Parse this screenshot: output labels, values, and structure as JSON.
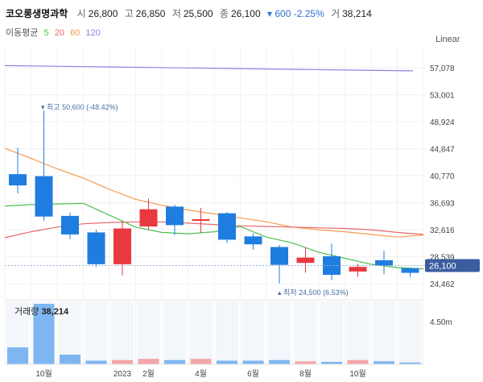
{
  "header": {
    "name": "코오롱생명과학",
    "open_label": "시",
    "open": "26,800",
    "high_label": "고",
    "high": "26,850",
    "low_label": "저",
    "low": "25,500",
    "close_label": "종",
    "close": "26,100",
    "change": "▾ 600 -2.25%",
    "volume_label": "거",
    "volume": "38,214"
  },
  "moving_average": {
    "label": "이동평균",
    "periods": [
      {
        "period": "5",
        "color": "#4cbf4c"
      },
      {
        "period": "20",
        "color": "#e8686b"
      },
      {
        "period": "60",
        "color": "#f39a4d"
      },
      {
        "period": "120",
        "color": "#9b7be8"
      }
    ]
  },
  "scale_mode": "Linear",
  "colors": {
    "up": "#e8393e",
    "down": "#1f7de0",
    "current_price_badge": "#3b5da0",
    "volume_bar": "#7fb6f2"
  },
  "chart_data": {
    "type": "candlestick",
    "interval": "monthly",
    "y_ticks": [
      57078,
      53001,
      48924,
      44847,
      40770,
      36693,
      32616,
      28539,
      24462
    ],
    "ylim": [
      23700,
      60200
    ],
    "x_ticks": [
      "10월",
      "2023",
      "2월",
      "4월",
      "6월",
      "8월",
      "10월"
    ],
    "current_price": "26,100",
    "annotations": {
      "high": "▾ 최고 50,600 (-48.42%)",
      "low": "▴ 최저 24,500 (6.53%)"
    },
    "candles": [
      {
        "open": 41000,
        "high": 45000,
        "low": 38100,
        "close": 39300
      },
      {
        "open": 40700,
        "high": 50600,
        "low": 34000,
        "close": 34600
      },
      {
        "open": 34700,
        "high": 35200,
        "low": 31200,
        "close": 31900
      },
      {
        "open": 32200,
        "high": 32600,
        "low": 27000,
        "close": 27400
      },
      {
        "open": 27400,
        "high": 33900,
        "low": 25700,
        "close": 32800
      },
      {
        "open": 33100,
        "high": 37300,
        "low": 32600,
        "close": 35700
      },
      {
        "open": 36100,
        "high": 36400,
        "low": 31800,
        "close": 33300
      },
      {
        "open": 34000,
        "high": 35900,
        "low": 32100,
        "close": 34200
      },
      {
        "open": 35100,
        "high": 35300,
        "low": 30600,
        "close": 31100
      },
      {
        "open": 31600,
        "high": 32100,
        "low": 29600,
        "close": 30400
      },
      {
        "open": 30000,
        "high": 30300,
        "low": 24500,
        "close": 27300
      },
      {
        "open": 27600,
        "high": 29900,
        "low": 26100,
        "close": 28400
      },
      {
        "open": 28600,
        "high": 30500,
        "low": 25000,
        "close": 25800
      },
      {
        "open": 26300,
        "high": 27500,
        "low": 25500,
        "close": 27000
      },
      {
        "open": 28000,
        "high": 29400,
        "low": 25900,
        "close": 27200
      },
      {
        "open": 26800,
        "high": 26850,
        "low": 25500,
        "close": 26100
      }
    ],
    "moving_averages": {
      "ma5": [
        36200,
        36400,
        36500,
        36600,
        34800,
        33000,
        32200,
        32000,
        32300,
        33100,
        31500,
        30600,
        29200,
        28300,
        27400,
        26900,
        26700
      ],
      "ma20": [
        31400,
        32300,
        33000,
        33500,
        33700,
        33800,
        33800,
        33600,
        33400,
        33200,
        33100,
        33000,
        32900,
        32800,
        32600,
        32200,
        31900
      ],
      "ma60": [
        44900,
        43400,
        41800,
        40400,
        38700,
        37200,
        36300,
        35600,
        35000,
        34400,
        33800,
        33000,
        32600,
        32300,
        31900,
        31500,
        31800
      ],
      "ma120": [
        57400,
        57300,
        57200,
        57100,
        57000,
        56900,
        56800,
        56700,
        56600
      ]
    },
    "volume": {
      "label": "거래량",
      "value": "38,214",
      "tick": "4.50m",
      "bars": [
        0.28,
        1.0,
        0.16,
        0.06,
        0.07,
        0.09,
        0.07,
        0.09,
        0.06,
        0.06,
        0.07,
        0.05,
        0.04,
        0.07,
        0.05,
        0.03
      ]
    }
  }
}
